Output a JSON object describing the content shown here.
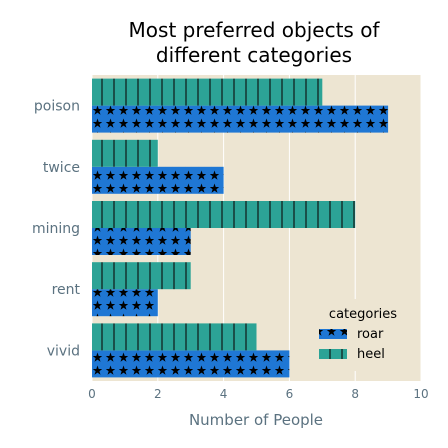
{
  "chart_data": {
    "type": "bar",
    "orientation": "horizontal",
    "title": "Most preferred objects of different categories",
    "xlabel": "Number of People",
    "ylabel": "",
    "categories": [
      "vivid",
      "rent",
      "mining",
      "twice",
      "poison"
    ],
    "series": [
      {
        "name": "roar",
        "values": [
          6,
          2,
          3,
          4,
          9
        ],
        "color": "#1f77d4",
        "pattern": "stars"
      },
      {
        "name": "heel",
        "values": [
          5,
          3,
          8,
          2,
          7
        ],
        "color": "#2ca396",
        "pattern": "vertical-lines"
      }
    ],
    "xlim": [
      0,
      10
    ],
    "xticks": [
      "0",
      "2",
      "4",
      "6",
      "8",
      "10"
    ],
    "grid": true,
    "legend": {
      "title": "categories",
      "placement": "bottom-right"
    },
    "plot_background": "#ede5d2"
  }
}
